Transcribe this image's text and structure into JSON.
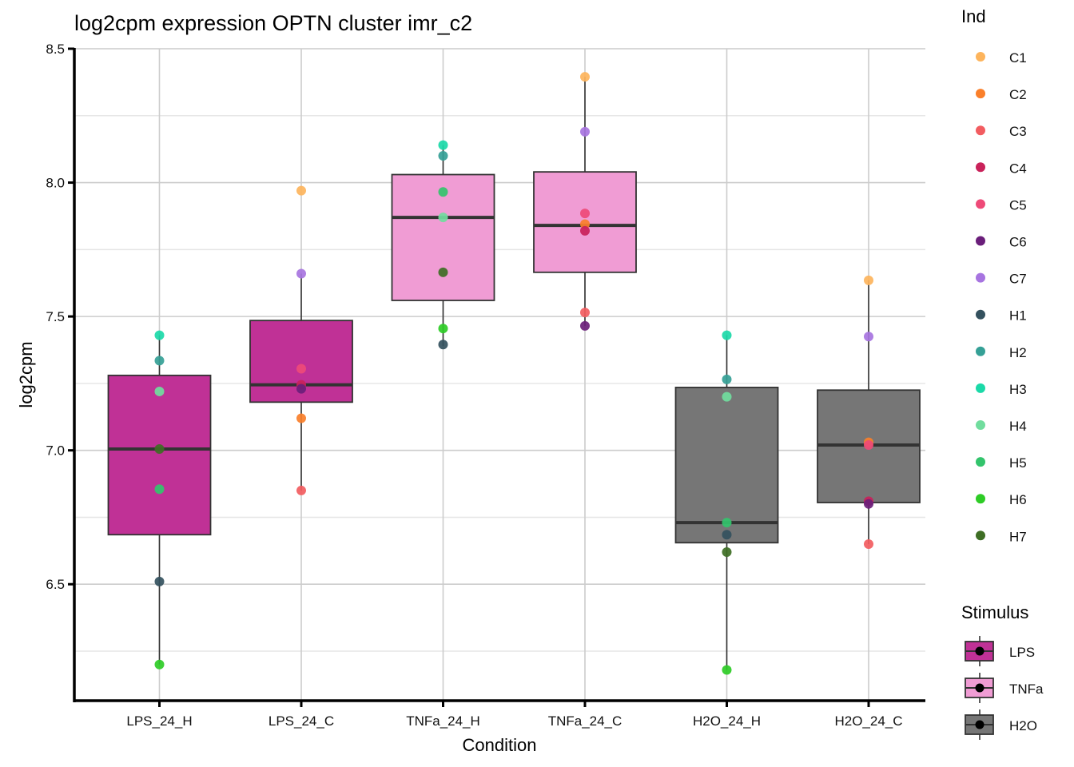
{
  "chart_data": {
    "type": "box",
    "title": "log2cpm expression OPTN cluster imr_c2",
    "xlabel": "Condition",
    "ylabel": "log2cpm",
    "ylim": [
      6.065,
      8.5
    ],
    "yticks": [
      6.5,
      7.0,
      7.5,
      8.0,
      8.5
    ],
    "ytick_labels": [
      "6.5",
      "7.0",
      "7.5",
      "8.0",
      "8.5"
    ],
    "grid": true,
    "categories": [
      "LPS_24_H",
      "LPS_24_C",
      "TNFa_24_H",
      "TNFa_24_C",
      "H2O_24_H",
      "H2O_24_C"
    ],
    "boxes": [
      {
        "category": "LPS_24_H",
        "stimulus": "LPS",
        "q1": 6.685,
        "median": 7.005,
        "q3": 7.28,
        "whisker_low": 6.2,
        "whisker_high": 7.43
      },
      {
        "category": "LPS_24_C",
        "stimulus": "LPS",
        "q1": 7.18,
        "median": 7.245,
        "q3": 7.485,
        "whisker_low": 6.85,
        "whisker_high": 7.66
      },
      {
        "category": "TNFa_24_H",
        "stimulus": "TNFa",
        "q1": 7.56,
        "median": 7.87,
        "q3": 8.03,
        "whisker_low": 7.39,
        "whisker_high": 8.14
      },
      {
        "category": "TNFa_24_C",
        "stimulus": "TNFa",
        "q1": 7.665,
        "median": 7.84,
        "q3": 8.04,
        "whisker_low": 7.465,
        "whisker_high": 8.395
      },
      {
        "category": "H2O_24_H",
        "stimulus": "H2O",
        "q1": 6.655,
        "median": 6.73,
        "q3": 7.235,
        "whisker_low": 6.18,
        "whisker_high": 7.43
      },
      {
        "category": "H2O_24_C",
        "stimulus": "H2O",
        "q1": 6.805,
        "median": 7.02,
        "q3": 7.225,
        "whisker_low": 6.65,
        "whisker_high": 7.635
      }
    ],
    "points": [
      {
        "category": "LPS_24_H",
        "ind": "H3",
        "value": 7.43
      },
      {
        "category": "LPS_24_H",
        "ind": "H2",
        "value": 7.335
      },
      {
        "category": "LPS_24_H",
        "ind": "H4",
        "value": 7.22
      },
      {
        "category": "LPS_24_H",
        "ind": "H7",
        "value": 7.005
      },
      {
        "category": "LPS_24_H",
        "ind": "H5",
        "value": 6.855
      },
      {
        "category": "LPS_24_H",
        "ind": "H1",
        "value": 6.51
      },
      {
        "category": "LPS_24_H",
        "ind": "H6",
        "value": 6.2
      },
      {
        "category": "LPS_24_C",
        "ind": "C1",
        "value": 7.97
      },
      {
        "category": "LPS_24_C",
        "ind": "C7",
        "value": 7.66
      },
      {
        "category": "LPS_24_C",
        "ind": "C5",
        "value": 7.305
      },
      {
        "category": "LPS_24_C",
        "ind": "C4",
        "value": 7.245
      },
      {
        "category": "LPS_24_C",
        "ind": "C6",
        "value": 7.23
      },
      {
        "category": "LPS_24_C",
        "ind": "C2",
        "value": 7.12
      },
      {
        "category": "LPS_24_C",
        "ind": "C3",
        "value": 6.85
      },
      {
        "category": "TNFa_24_H",
        "ind": "H3",
        "value": 8.14
      },
      {
        "category": "TNFa_24_H",
        "ind": "H2",
        "value": 8.1
      },
      {
        "category": "TNFa_24_H",
        "ind": "H5",
        "value": 7.965
      },
      {
        "category": "TNFa_24_H",
        "ind": "H4",
        "value": 7.87
      },
      {
        "category": "TNFa_24_H",
        "ind": "H7",
        "value": 7.665
      },
      {
        "category": "TNFa_24_H",
        "ind": "H6",
        "value": 7.455
      },
      {
        "category": "TNFa_24_H",
        "ind": "H1",
        "value": 7.395
      },
      {
        "category": "TNFa_24_C",
        "ind": "C1",
        "value": 8.395
      },
      {
        "category": "TNFa_24_C",
        "ind": "C7",
        "value": 8.19
      },
      {
        "category": "TNFa_24_C",
        "ind": "C5",
        "value": 7.885
      },
      {
        "category": "TNFa_24_C",
        "ind": "C2",
        "value": 7.845
      },
      {
        "category": "TNFa_24_C",
        "ind": "C4",
        "value": 7.82
      },
      {
        "category": "TNFa_24_C",
        "ind": "C3",
        "value": 7.515
      },
      {
        "category": "TNFa_24_C",
        "ind": "C6",
        "value": 7.465
      },
      {
        "category": "H2O_24_H",
        "ind": "H3",
        "value": 7.43
      },
      {
        "category": "H2O_24_H",
        "ind": "H2",
        "value": 7.265
      },
      {
        "category": "H2O_24_H",
        "ind": "H4",
        "value": 7.2
      },
      {
        "category": "H2O_24_H",
        "ind": "H5",
        "value": 6.73
      },
      {
        "category": "H2O_24_H",
        "ind": "H1",
        "value": 6.685
      },
      {
        "category": "H2O_24_H",
        "ind": "H7",
        "value": 6.62
      },
      {
        "category": "H2O_24_H",
        "ind": "H6",
        "value": 6.18
      },
      {
        "category": "H2O_24_C",
        "ind": "C1",
        "value": 7.635
      },
      {
        "category": "H2O_24_C",
        "ind": "C7",
        "value": 7.425
      },
      {
        "category": "H2O_24_C",
        "ind": "C2",
        "value": 7.03
      },
      {
        "category": "H2O_24_C",
        "ind": "C5",
        "value": 7.02
      },
      {
        "category": "H2O_24_C",
        "ind": "C4",
        "value": 6.81
      },
      {
        "category": "H2O_24_C",
        "ind": "C6",
        "value": 6.8
      },
      {
        "category": "H2O_24_C",
        "ind": "C3",
        "value": 6.65
      }
    ],
    "legends": [
      {
        "title": "Ind",
        "placement": "right",
        "entries": [
          {
            "label": "C1",
            "color": "#FDB45C"
          },
          {
            "label": "C2",
            "color": "#FA7F2A"
          },
          {
            "label": "C3",
            "color": "#F25C60"
          },
          {
            "label": "C4",
            "color": "#C9225A"
          },
          {
            "label": "C5",
            "color": "#EE4A78"
          },
          {
            "label": "C6",
            "color": "#6A1E7A"
          },
          {
            "label": "C7",
            "color": "#A774E0"
          },
          {
            "label": "H1",
            "color": "#34515E"
          },
          {
            "label": "H2",
            "color": "#35A096"
          },
          {
            "label": "H3",
            "color": "#1BD9A8"
          },
          {
            "label": "H4",
            "color": "#71DD9E"
          },
          {
            "label": "H5",
            "color": "#33C46C"
          },
          {
            "label": "H6",
            "color": "#2ECC26"
          },
          {
            "label": "H7",
            "color": "#3E6E24"
          }
        ]
      },
      {
        "title": "Stimulus",
        "placement": "bottom-right",
        "entries": [
          {
            "label": "LPS",
            "color": "#C03196"
          },
          {
            "label": "TNFa",
            "color": "#F09CD4"
          },
          {
            "label": "H2O",
            "color": "#767676"
          }
        ]
      }
    ]
  }
}
